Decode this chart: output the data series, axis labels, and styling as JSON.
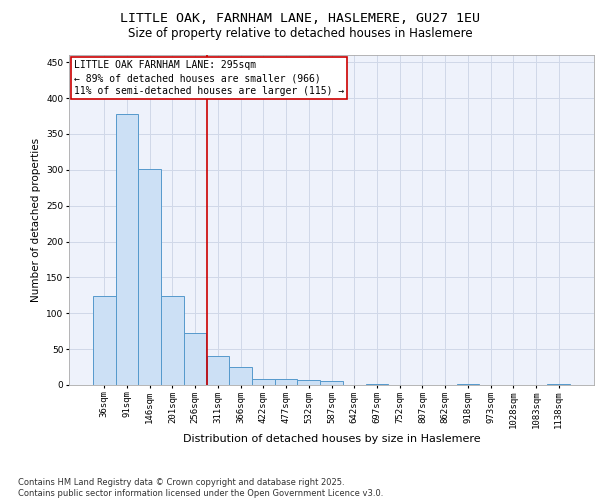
{
  "title1": "LITTLE OAK, FARNHAM LANE, HASLEMERE, GU27 1EU",
  "title2": "Size of property relative to detached houses in Haslemere",
  "xlabel": "Distribution of detached houses by size in Haslemere",
  "ylabel": "Number of detached properties",
  "bar_labels": [
    "36sqm",
    "91sqm",
    "146sqm",
    "201sqm",
    "256sqm",
    "311sqm",
    "366sqm",
    "422sqm",
    "477sqm",
    "532sqm",
    "587sqm",
    "642sqm",
    "697sqm",
    "752sqm",
    "807sqm",
    "862sqm",
    "918sqm",
    "973sqm",
    "1028sqm",
    "1083sqm",
    "1138sqm"
  ],
  "bar_values": [
    124,
    378,
    301,
    124,
    72,
    40,
    25,
    8,
    9,
    7,
    6,
    0,
    1,
    0,
    0,
    0,
    2,
    0,
    0,
    0,
    2
  ],
  "bar_color": "#cce0f5",
  "bar_edge_color": "#5599cc",
  "annotation_box_text": "LITTLE OAK FARNHAM LANE: 295sqm\n← 89% of detached houses are smaller (966)\n11% of semi-detached houses are larger (115) →",
  "annotation_box_color": "#cc0000",
  "vline_x": 4.5,
  "vline_color": "#cc0000",
  "ylim": [
    0,
    460
  ],
  "yticks": [
    0,
    50,
    100,
    150,
    200,
    250,
    300,
    350,
    400,
    450
  ],
  "grid_color": "#d0d8e8",
  "background_color": "#eef2fb",
  "footnote": "Contains HM Land Registry data © Crown copyright and database right 2025.\nContains public sector information licensed under the Open Government Licence v3.0.",
  "title1_fontsize": 9.5,
  "title2_fontsize": 8.5,
  "xlabel_fontsize": 8,
  "ylabel_fontsize": 7.5,
  "tick_fontsize": 6.5,
  "annotation_fontsize": 7,
  "footnote_fontsize": 6
}
